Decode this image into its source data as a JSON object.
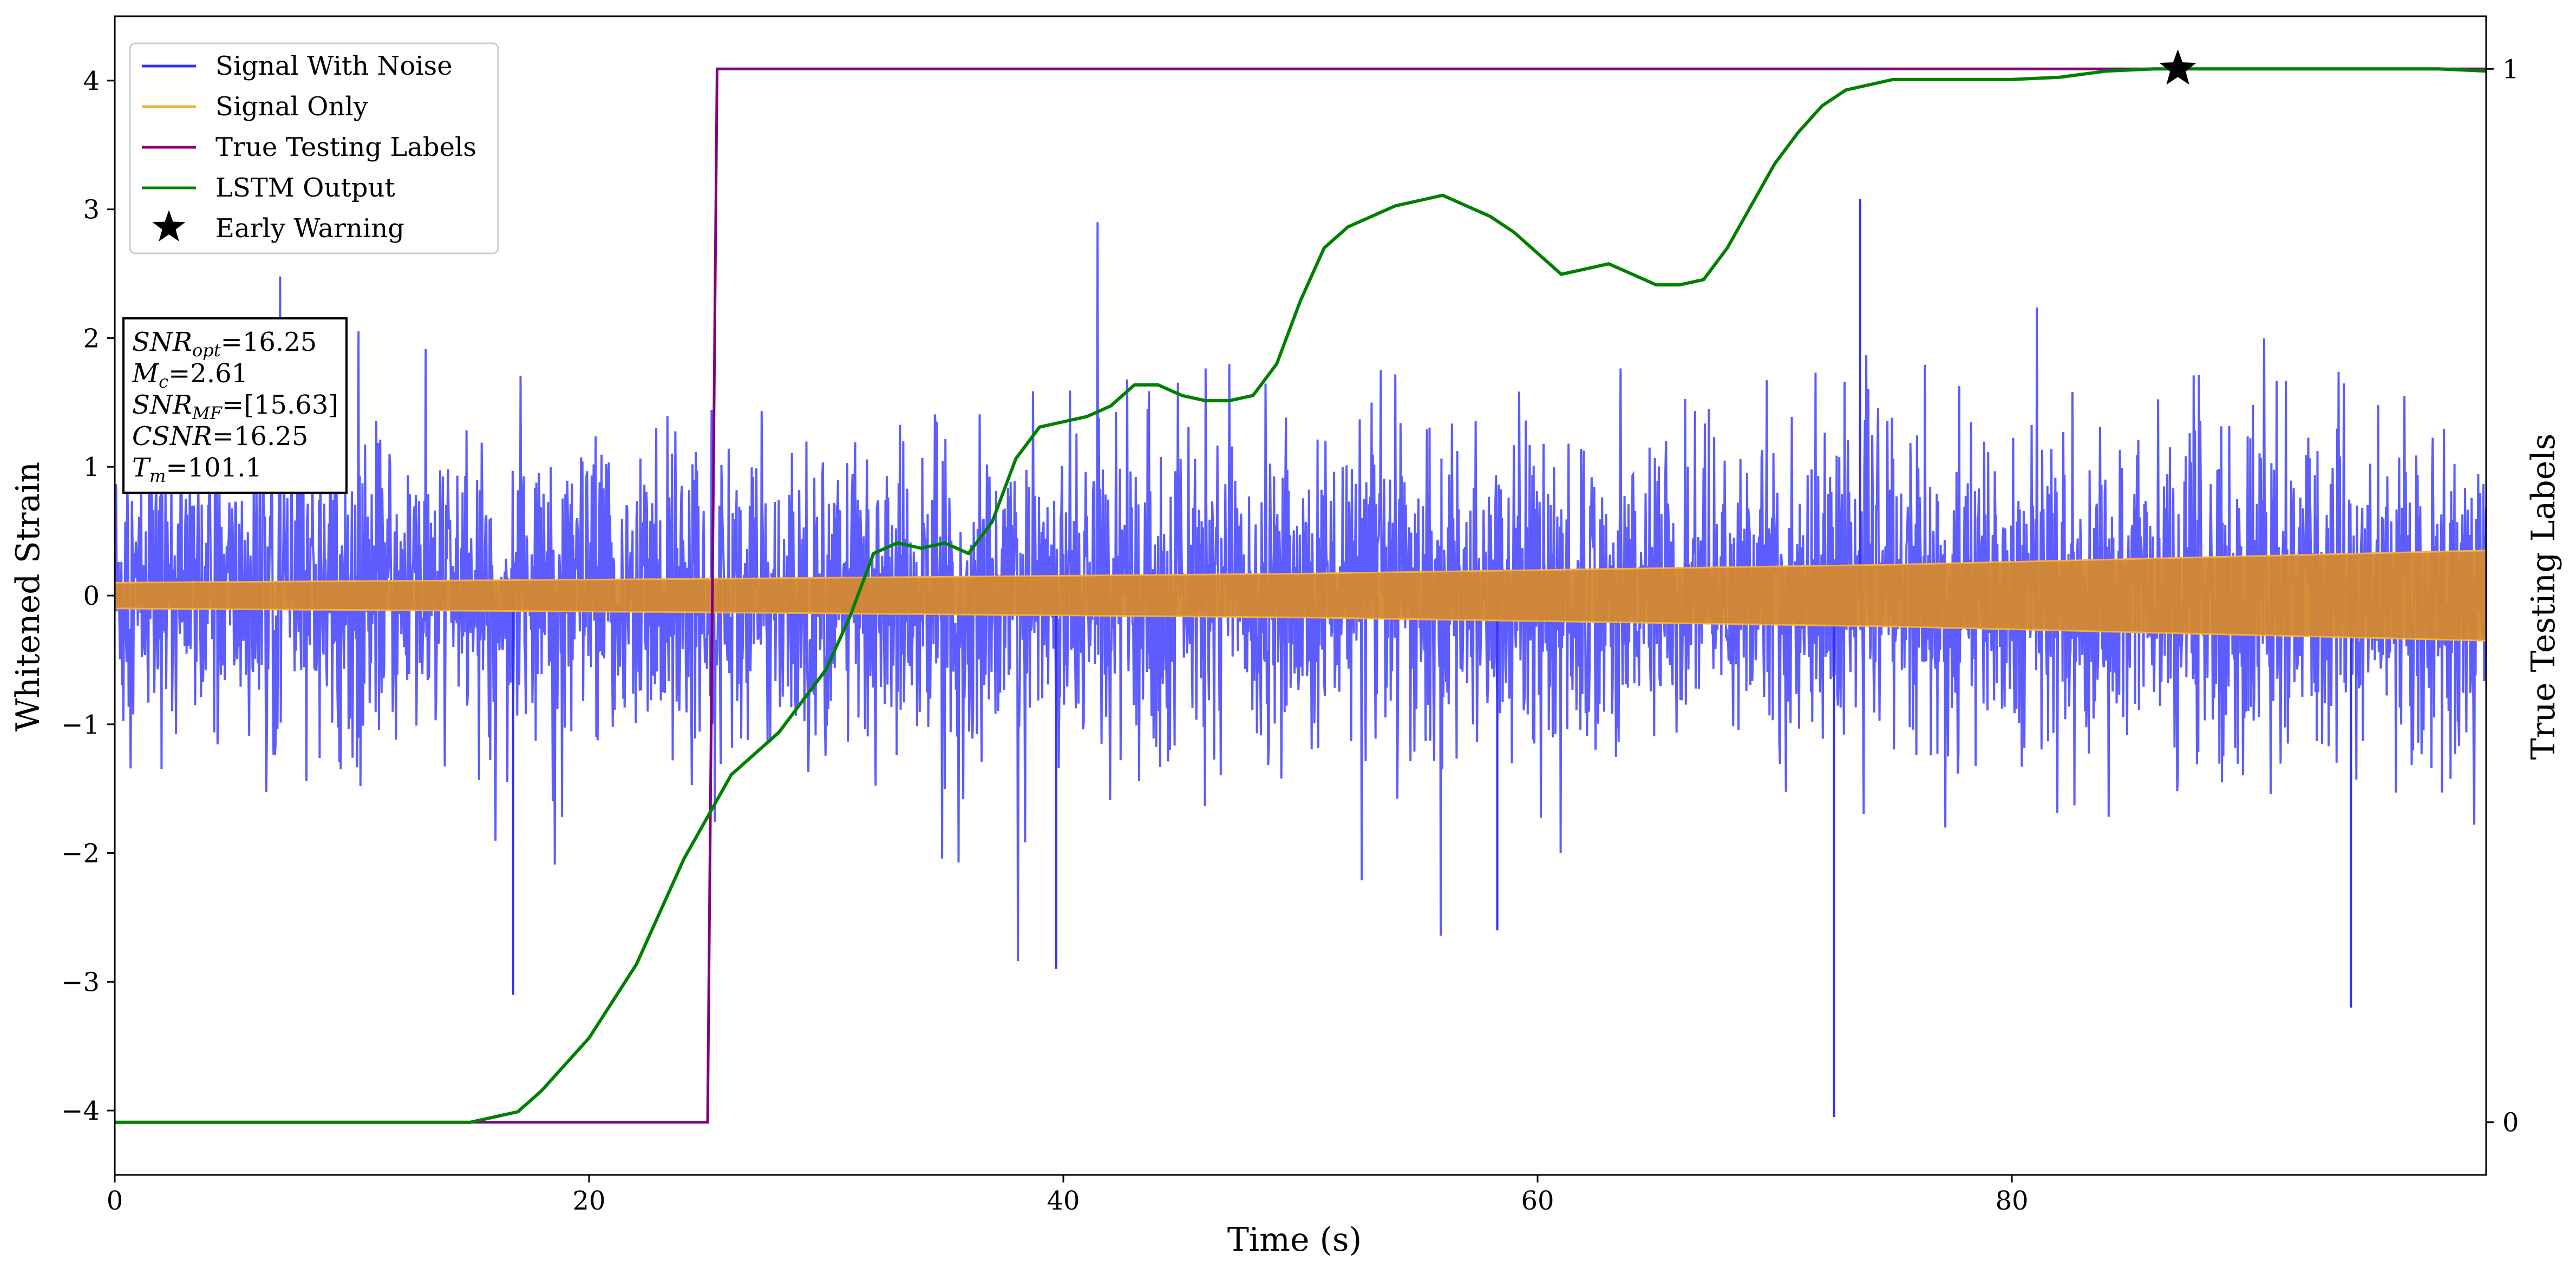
{
  "chart_data": {
    "type": "line",
    "xlabel": "Time (s)",
    "ylabel": "Whitened Strain",
    "y2label": "True Testing Labels",
    "xlim": [
      0,
      100
    ],
    "ylim": [
      -4.5,
      4.5
    ],
    "y2lim": [
      -0.05,
      1.05
    ],
    "x_ticks": [
      0,
      20,
      40,
      60,
      80
    ],
    "x_tick_labels": [
      "0",
      "20",
      "40",
      "60",
      "80"
    ],
    "y_ticks": [
      -4,
      -3,
      -2,
      -1,
      0,
      1,
      2,
      3,
      4
    ],
    "y_tick_labels": [
      "−4",
      "−3",
      "−2",
      "−1",
      "0",
      "1",
      "2",
      "3",
      "4"
    ],
    "y2_ticks": [
      0,
      1
    ],
    "y2_tick_labels": [
      "0",
      "1"
    ],
    "grid": false,
    "legend_position": "upper-left",
    "series": [
      {
        "name": "Signal With Noise",
        "color": "#3333ff",
        "axis": "left",
        "description_values": {
          "band_min": [
            -2.3,
            -2.0
          ],
          "band_max": [
            2.3,
            2.1
          ],
          "extreme_min": -4.05,
          "extreme_max": 3.08
        }
      },
      {
        "name": "Signal Only",
        "color": "#f4b040",
        "axis": "left",
        "envelope": {
          "x": [
            0,
            25,
            50,
            75,
            100
          ],
          "amplitude": [
            0.1,
            0.13,
            0.17,
            0.24,
            0.35
          ]
        }
      },
      {
        "name": "True Testing Labels",
        "color": "#800080",
        "axis": "right",
        "x": [
          0,
          25.0,
          25.4,
          100
        ],
        "y": [
          0,
          0,
          1,
          1
        ]
      },
      {
        "name": "LSTM Output",
        "color": "#008000",
        "axis": "right",
        "x": [
          0,
          15,
          17,
          18,
          20,
          22,
          24,
          26,
          28,
          30,
          31,
          32,
          33,
          34,
          35,
          36,
          37,
          38,
          39,
          40,
          41,
          42,
          43,
          44,
          45,
          46,
          47,
          48,
          49,
          50,
          51,
          52,
          53,
          54,
          55,
          56,
          57,
          58,
          59,
          60,
          61,
          62,
          63,
          64,
          65,
          66,
          67,
          68,
          69,
          70,
          71,
          72,
          73,
          74,
          75,
          76,
          78,
          80,
          82,
          84,
          86,
          88,
          90,
          92,
          94,
          96,
          98,
          100
        ],
        "y": [
          0,
          0,
          0.01,
          0.03,
          0.08,
          0.15,
          0.25,
          0.33,
          0.37,
          0.43,
          0.48,
          0.54,
          0.55,
          0.545,
          0.55,
          0.54,
          0.57,
          0.63,
          0.66,
          0.665,
          0.67,
          0.68,
          0.7,
          0.7,
          0.69,
          0.685,
          0.685,
          0.69,
          0.72,
          0.78,
          0.83,
          0.85,
          0.86,
          0.87,
          0.875,
          0.88,
          0.87,
          0.86,
          0.845,
          0.825,
          0.805,
          0.81,
          0.815,
          0.805,
          0.795,
          0.795,
          0.8,
          0.83,
          0.87,
          0.91,
          0.94,
          0.965,
          0.98,
          0.985,
          0.99,
          0.99,
          0.99,
          0.99,
          0.992,
          0.998,
          1.0,
          1.0,
          1.0,
          1.0,
          1.0,
          1.0,
          1.0,
          0.998
        ]
      },
      {
        "name": "Early Warning",
        "color": "#000000",
        "axis": "right",
        "marker": "star",
        "x": [
          87
        ],
        "y": [
          1.0
        ]
      }
    ]
  },
  "legend": [
    {
      "label": "Signal With Noise",
      "color": "#3333ff",
      "kind": "line"
    },
    {
      "label": "Signal Only",
      "color": "#f4b040",
      "kind": "line"
    },
    {
      "label": "True Testing Labels",
      "color": "#800080",
      "kind": "line"
    },
    {
      "label": "LSTM Output",
      "color": "#008000",
      "kind": "line"
    },
    {
      "label": "Early Warning",
      "color": "#000000",
      "kind": "star"
    }
  ],
  "info_box": {
    "snr_opt": {
      "symbol": "SNR",
      "sub": "opt",
      "value": "=16.25"
    },
    "mc": {
      "symbol": "M",
      "sub": "c",
      "value": "=2.61"
    },
    "snr_mf": {
      "symbol": "SNR",
      "sub": "MF",
      "value": "=[15.63]"
    },
    "csnr": {
      "symbol": "CSNR",
      "sub": "",
      "value": "=16.25"
    },
    "tm": {
      "symbol": "T",
      "sub": "m",
      "value": "=101.1"
    }
  }
}
